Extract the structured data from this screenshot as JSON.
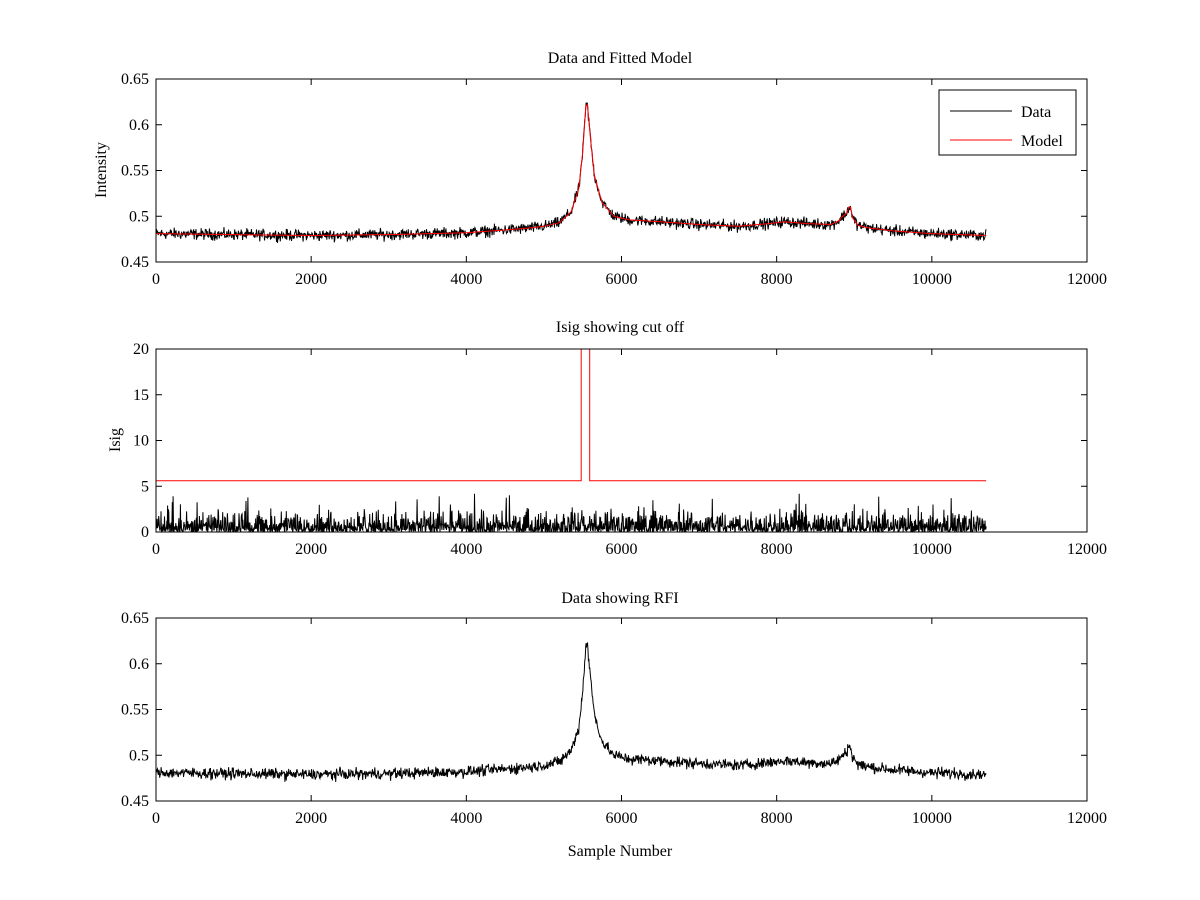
{
  "chart_data": [
    {
      "type": "line",
      "title": "Data and Fitted Model",
      "xlabel": "",
      "ylabel": "Intensity",
      "xlim": [
        0,
        12000
      ],
      "ylim": [
        0.45,
        0.65
      ],
      "xticks": [
        "0",
        "2000",
        "4000",
        "6000",
        "8000",
        "10000",
        "12000"
      ],
      "yticks": [
        "0.45",
        "0.5",
        "0.55",
        "0.6",
        "0.65"
      ],
      "grid": false,
      "legend_position": "top-right",
      "series": [
        {
          "name": "Data",
          "color": "#000000",
          "style": "noisy band around model",
          "x_range": [
            0,
            10700
          ],
          "noise_amplitude": 0.006
        },
        {
          "name": "Model",
          "color": "#ff0000",
          "x": [
            0,
            1000,
            2000,
            3000,
            4000,
            4500,
            4800,
            5000,
            5200,
            5350,
            5450,
            5500,
            5540,
            5560,
            5600,
            5650,
            5750,
            5900,
            6100,
            6500,
            7000,
            7500,
            7900,
            8100,
            8400,
            8700,
            8800,
            8850,
            8900,
            8930,
            8950,
            8980,
            9050,
            9200,
            9500,
            10000,
            10700
          ],
          "y": [
            0.481,
            0.48,
            0.479,
            0.48,
            0.482,
            0.485,
            0.487,
            0.489,
            0.493,
            0.505,
            0.53,
            0.57,
            0.62,
            0.622,
            0.585,
            0.545,
            0.515,
            0.5,
            0.496,
            0.494,
            0.491,
            0.489,
            0.492,
            0.494,
            0.492,
            0.491,
            0.495,
            0.5,
            0.503,
            0.51,
            0.51,
            0.498,
            0.49,
            0.487,
            0.484,
            0.481,
            0.479
          ]
        }
      ]
    },
    {
      "type": "line",
      "title": "Isig showing cut off",
      "xlabel": "",
      "ylabel": "Isig",
      "xlim": [
        0,
        12000
      ],
      "ylim": [
        0,
        20
      ],
      "xticks": [
        "0",
        "2000",
        "4000",
        "6000",
        "8000",
        "10000",
        "12000"
      ],
      "yticks": [
        "0",
        "5",
        "10",
        "15",
        "20"
      ],
      "grid": false,
      "series": [
        {
          "color": "#000000",
          "style": "noisy spikes",
          "x_range": [
            0,
            10700
          ],
          "typical_max": 2.5,
          "peak_max": 4.2
        },
        {
          "color": "#ff0000",
          "x": [
            0,
            5480,
            5480,
            5590,
            5590,
            10700
          ],
          "y": [
            5.6,
            5.6,
            20,
            20,
            5.6,
            5.6
          ]
        }
      ]
    },
    {
      "type": "line",
      "title": "Data showing RFI",
      "xlabel": "Sample Number",
      "ylabel": "",
      "xlim": [
        0,
        12000
      ],
      "ylim": [
        0.45,
        0.65
      ],
      "xticks": [
        "0",
        "2000",
        "4000",
        "6000",
        "8000",
        "10000",
        "12000"
      ],
      "yticks": [
        "0.45",
        "0.5",
        "0.55",
        "0.6",
        "0.65"
      ],
      "grid": false,
      "series": [
        {
          "color": "#000000",
          "style": "noisy band around baseline",
          "x_range": [
            0,
            10700
          ],
          "noise_amplitude": 0.006
        }
      ]
    }
  ]
}
